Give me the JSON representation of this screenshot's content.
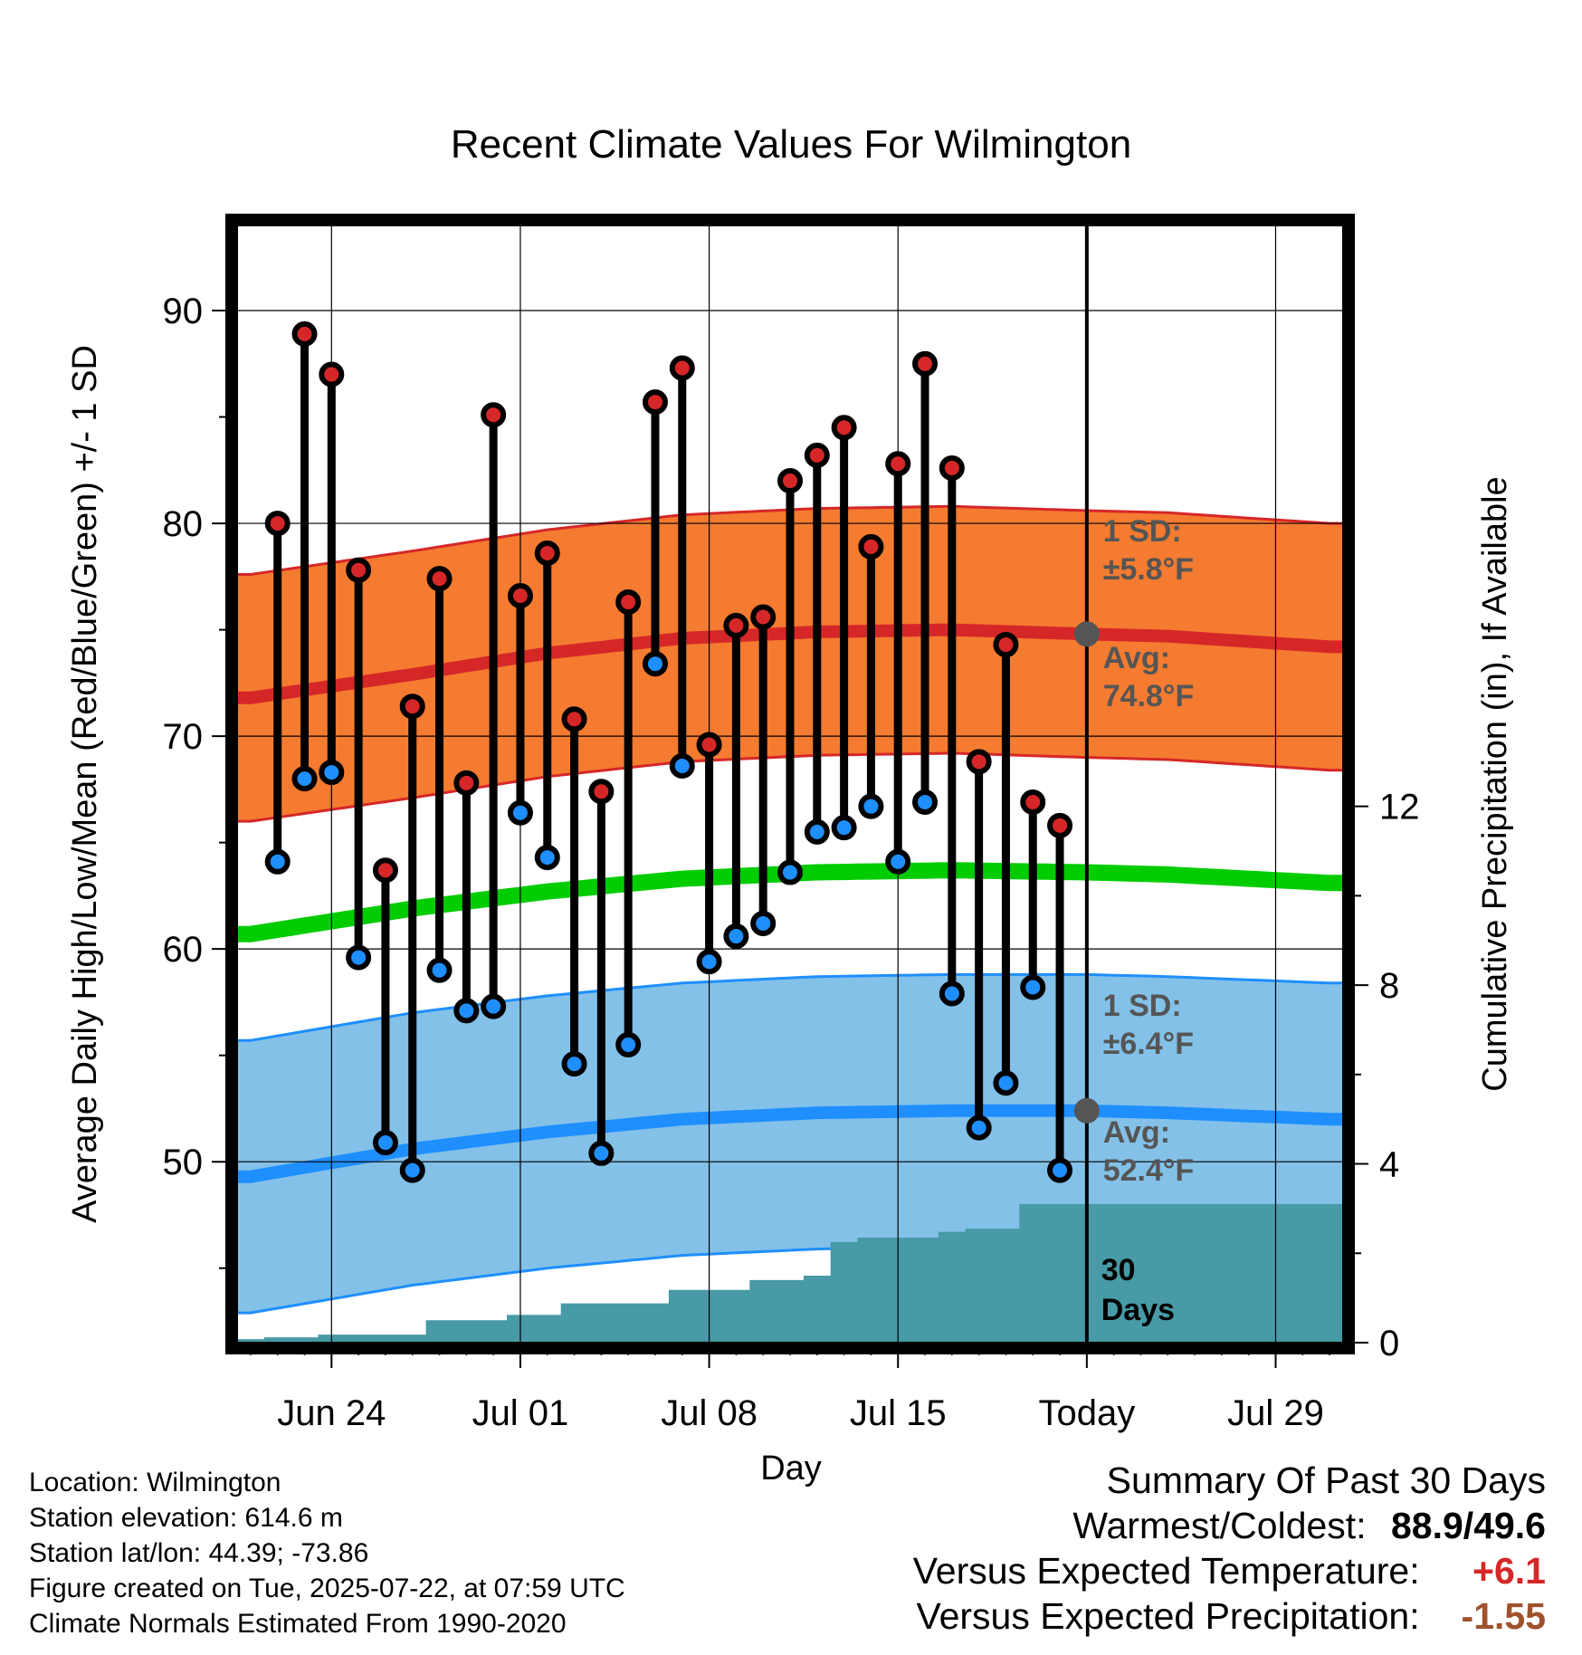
{
  "chart_data": {
    "type": "line",
    "title": "Recent Climate Values For Wilmington",
    "xlabel": "Day",
    "ylabel": "Average Daily High/Low/Mean (Red/Blue/Green) +/- 1 SD",
    "y2label": "Cumulative Precipitation (in), If Available",
    "x_tick_labels": [
      "Jun 24",
      "Jul 01",
      "Jul 08",
      "Jul 15",
      "Today",
      "Jul 29"
    ],
    "y_ticks": [
      50,
      60,
      70,
      80,
      90
    ],
    "y_range": [
      41.5,
      94
    ],
    "y2_ticks": [
      0,
      4,
      8,
      12
    ],
    "y2_range": [
      0,
      25
    ],
    "day_range": [
      -31.5,
      9.5
    ],
    "today_marker": "Today",
    "daily_highs": [
      80.0,
      88.9,
      87.0,
      77.8,
      63.7,
      71.4,
      77.4,
      67.8,
      85.1,
      76.6,
      78.6,
      70.8,
      67.4,
      76.3,
      85.7,
      87.3,
      69.6,
      75.2,
      75.6,
      82.0,
      83.2,
      84.5,
      78.9,
      82.8,
      87.5,
      82.6,
      68.8,
      74.3,
      66.9,
      65.8
    ],
    "daily_lows": [
      64.1,
      68.0,
      68.3,
      59.6,
      50.9,
      49.6,
      59.0,
      57.1,
      57.3,
      66.4,
      64.3,
      54.6,
      50.4,
      55.5,
      73.4,
      68.6,
      59.4,
      60.6,
      61.2,
      63.6,
      65.5,
      65.7,
      66.7,
      64.1,
      66.9,
      57.9,
      51.6,
      53.7,
      58.2,
      49.6
    ],
    "normals": {
      "days": [
        -31,
        -25,
        -20,
        -15,
        -10,
        -5,
        0,
        3,
        9
      ],
      "avg_high": [
        71.8,
        72.9,
        73.9,
        74.6,
        74.9,
        75.0,
        74.8,
        74.7,
        74.2
      ],
      "high_sd": 5.8,
      "avg_mean": [
        60.7,
        61.9,
        62.7,
        63.3,
        63.6,
        63.7,
        63.6,
        63.5,
        63.1
      ],
      "avg_low": [
        49.3,
        50.6,
        51.4,
        52.0,
        52.3,
        52.4,
        52.4,
        52.3,
        52.0
      ],
      "low_sd": 6.4
    },
    "cumulative_precip": {
      "days": [
        -31,
        -30,
        -29,
        -28,
        -27,
        -26,
        -25,
        -24,
        -23,
        -22,
        -21,
        -20,
        -19,
        -18,
        -17,
        -16,
        -15,
        -14,
        -13,
        -12,
        -11,
        -10,
        -9,
        -8,
        -7,
        -6,
        -5,
        -4,
        -3,
        -2,
        -1,
        0,
        9
      ],
      "values": [
        0.08,
        0.12,
        0.12,
        0.18,
        0.18,
        0.18,
        0.18,
        0.5,
        0.5,
        0.5,
        0.62,
        0.62,
        0.88,
        0.88,
        0.88,
        0.88,
        1.18,
        1.18,
        1.18,
        1.4,
        1.4,
        1.5,
        2.25,
        2.35,
        2.35,
        2.35,
        2.48,
        2.55,
        2.55,
        3.1,
        3.1,
        3.1,
        3.1
      ]
    },
    "annotations": {
      "high_sd_label": "1 SD:",
      "high_sd_value": "±5.8°F",
      "high_avg_label": "Avg:",
      "high_avg_value": "74.8°F",
      "low_sd_label": "1 SD:",
      "low_sd_value": "±6.4°F",
      "low_avg_label": "Avg:",
      "low_avg_value": "52.4°F",
      "window_count": "30",
      "window_unit": "Days"
    },
    "colors": {
      "high_band": "#f47b30",
      "high_line": "#d62728",
      "high_marker": "#d62728",
      "mean_line": "#00cc00",
      "low_band": "#83c1e8",
      "low_line": "#1f8fff",
      "low_marker": "#1f8fff",
      "precip": "#479aa6",
      "marker_today": "#555555"
    }
  },
  "footer": {
    "location": "Location: Wilmington",
    "elevation": "Station elevation: 614.6 m",
    "latlon": "Station lat/lon: 44.39; -73.86",
    "created": "Figure created on Tue, 2025-07-22, at 07:59 UTC",
    "normals": "Climate Normals Estimated From 1990-2020"
  },
  "summary": {
    "title": "Summary Of Past 30 Days",
    "warm_cold_label": "Warmest/Coldest:",
    "warm_cold_value": "88.9/49.6",
    "temp_label": "Versus Expected Temperature:",
    "temp_value": "+6.1",
    "precip_label": "Versus Expected Precipitation:",
    "precip_value": "-1.55"
  }
}
